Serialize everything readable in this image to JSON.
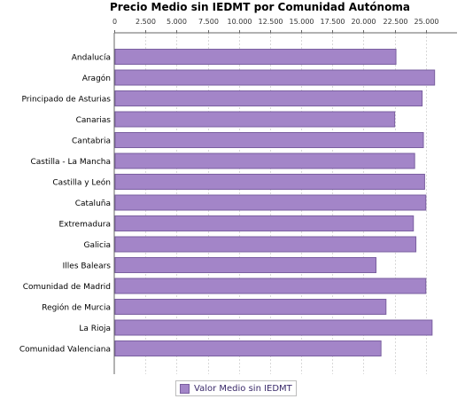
{
  "chart_data": {
    "type": "bar",
    "orientation": "horizontal",
    "title": "Precio Medio sin IEDMT por Comunidad Autónoma",
    "categories": [
      "Andalucía",
      "Aragón",
      "Principado de Asturias",
      "Canarias",
      "Cantabria",
      "Castilla - La Mancha",
      "Castilla y León",
      "Cataluña",
      "Extremadura",
      "Galicia",
      "Illes Balears",
      "Comunidad de Madrid",
      "Región de Murcia",
      "La Rioja",
      "Comunidad Valenciana"
    ],
    "series": [
      {
        "name": "Valor Medio sin IEDMT",
        "values": [
          22600,
          25700,
          24700,
          22500,
          24800,
          24100,
          24900,
          25000,
          24000,
          24200,
          21000,
          25000,
          21800,
          25500,
          21400
        ]
      }
    ],
    "xticks": [
      "0",
      "2.500",
      "5.000",
      "7.500",
      "10.000",
      "12.500",
      "15.000",
      "17.500",
      "20.000",
      "22.500",
      "25.000"
    ],
    "xlim": [
      0,
      27500
    ],
    "axis_position": "top",
    "grid": true,
    "legend_position": "bottom",
    "colors": {
      "bar": "#a385c8",
      "bar_border": "#7a5fa0",
      "grid": "#d8d8d8"
    }
  }
}
